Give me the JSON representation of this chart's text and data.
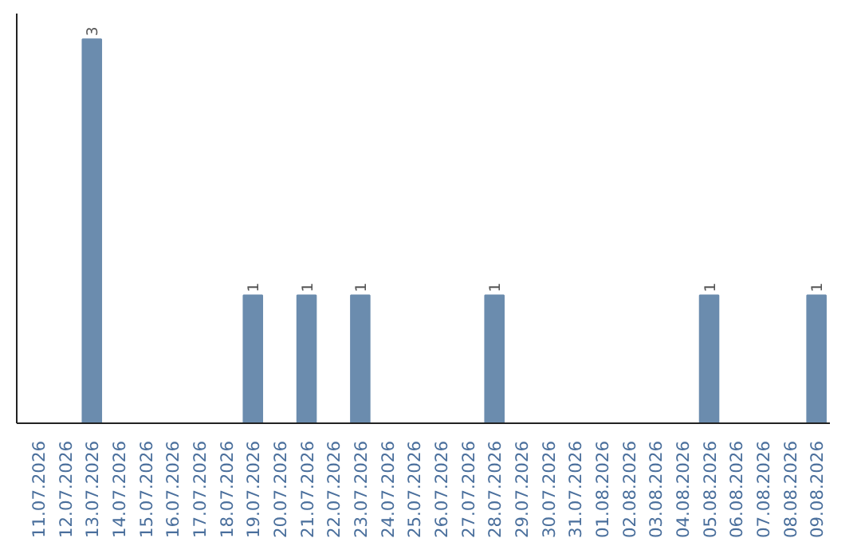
{
  "chart_data": {
    "type": "bar",
    "categories": [
      "11.07.2026",
      "12.07.2026",
      "13.07.2026",
      "14.07.2026",
      "15.07.2026",
      "16.07.2026",
      "17.07.2026",
      "18.07.2026",
      "19.07.2026",
      "20.07.2026",
      "21.07.2026",
      "22.07.2026",
      "23.07.2026",
      "24.07.2026",
      "25.07.2026",
      "26.07.2026",
      "27.07.2026",
      "28.07.2026",
      "29.07.2026",
      "30.07.2026",
      "31.07.2026",
      "01.08.2026",
      "02.08.2026",
      "03.08.2026",
      "04.08.2026",
      "05.08.2026",
      "06.08.2026",
      "07.08.2026",
      "08.08.2026",
      "09.08.2026"
    ],
    "values": [
      0,
      0,
      3,
      0,
      0,
      0,
      0,
      0,
      1,
      0,
      1,
      0,
      1,
      0,
      0,
      0,
      0,
      1,
      0,
      0,
      0,
      0,
      0,
      0,
      0,
      1,
      0,
      0,
      0,
      1
    ],
    "value_labels": [
      null,
      null,
      "3",
      null,
      null,
      null,
      null,
      null,
      "1",
      null,
      "1",
      null,
      "1",
      null,
      null,
      null,
      null,
      "1",
      null,
      null,
      null,
      null,
      null,
      null,
      null,
      "1",
      null,
      null,
      null,
      "1"
    ],
    "color": "#6b8cae",
    "ylim": [
      0,
      3.2
    ],
    "tick_labels": "x",
    "grid": false
  }
}
